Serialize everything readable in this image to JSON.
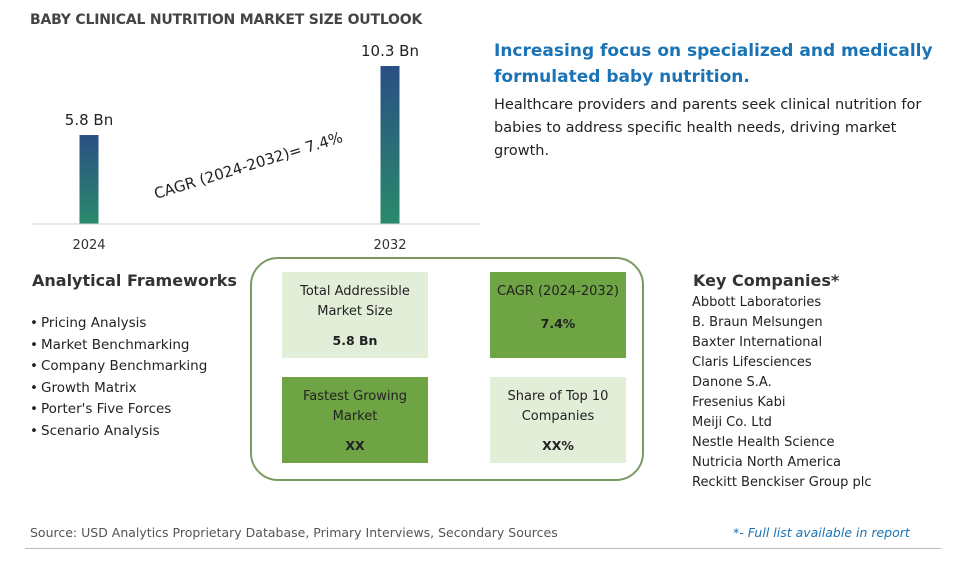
{
  "title": "BABY CLINICAL NUTRITION MARKET SIZE OUTLOOK",
  "chart_data": {
    "type": "bar",
    "categories": [
      "2024",
      "2032"
    ],
    "values": [
      5.8,
      10.3
    ],
    "value_labels": [
      "5.8 Bn",
      "10.3 Bn"
    ],
    "annotation": "CAGR (2024-2032)=  7.4%",
    "ylim": [
      0,
      10.3
    ],
    "colors": {
      "top": "#2a4f83",
      "bottom": "#2a8a6c"
    }
  },
  "headline": "Increasing focus on specialized and medically formulated baby nutrition.",
  "headline_desc": "Healthcare providers and parents seek clinical nutrition for babies to address specific health needs, driving market growth.",
  "frameworks": {
    "title": "Analytical Frameworks",
    "items": [
      "Pricing Analysis",
      "Market Benchmarking",
      "Company Benchmarking",
      "Growth Matrix",
      "Porter's Five Forces",
      "Scenario Analysis"
    ]
  },
  "summary": {
    "tam": {
      "label": "Total Addressible Market Size",
      "value": "5.8 Bn"
    },
    "cagr": {
      "label": "CAGR (2024-2032)",
      "value": "7.4%"
    },
    "fastest": {
      "label": "Fastest Growing Market",
      "value": "XX"
    },
    "share": {
      "label": "Share of Top 10 Companies",
      "value": "XX%"
    }
  },
  "companies": {
    "title": "Key Companies*",
    "items": [
      "Abbott Laboratories",
      "B. Braun Melsungen",
      "Baxter International",
      "Claris Lifesciences",
      "Danone S.A.",
      "Fresenius Kabi",
      "Meiji Co. Ltd",
      "Nestle Health Science",
      "Nutricia North America",
      "Reckitt Benckiser Group plc"
    ]
  },
  "source": "Source: USD Analytics Proprietary Database, Primary Interviews, Secondary Sources",
  "footnote": "*- Full list available in report",
  "colors": {
    "accent_blue": "#1a73b5",
    "card_light": "#e3eed9",
    "card_dark": "#6fa445",
    "border_green": "#7b9a63"
  }
}
